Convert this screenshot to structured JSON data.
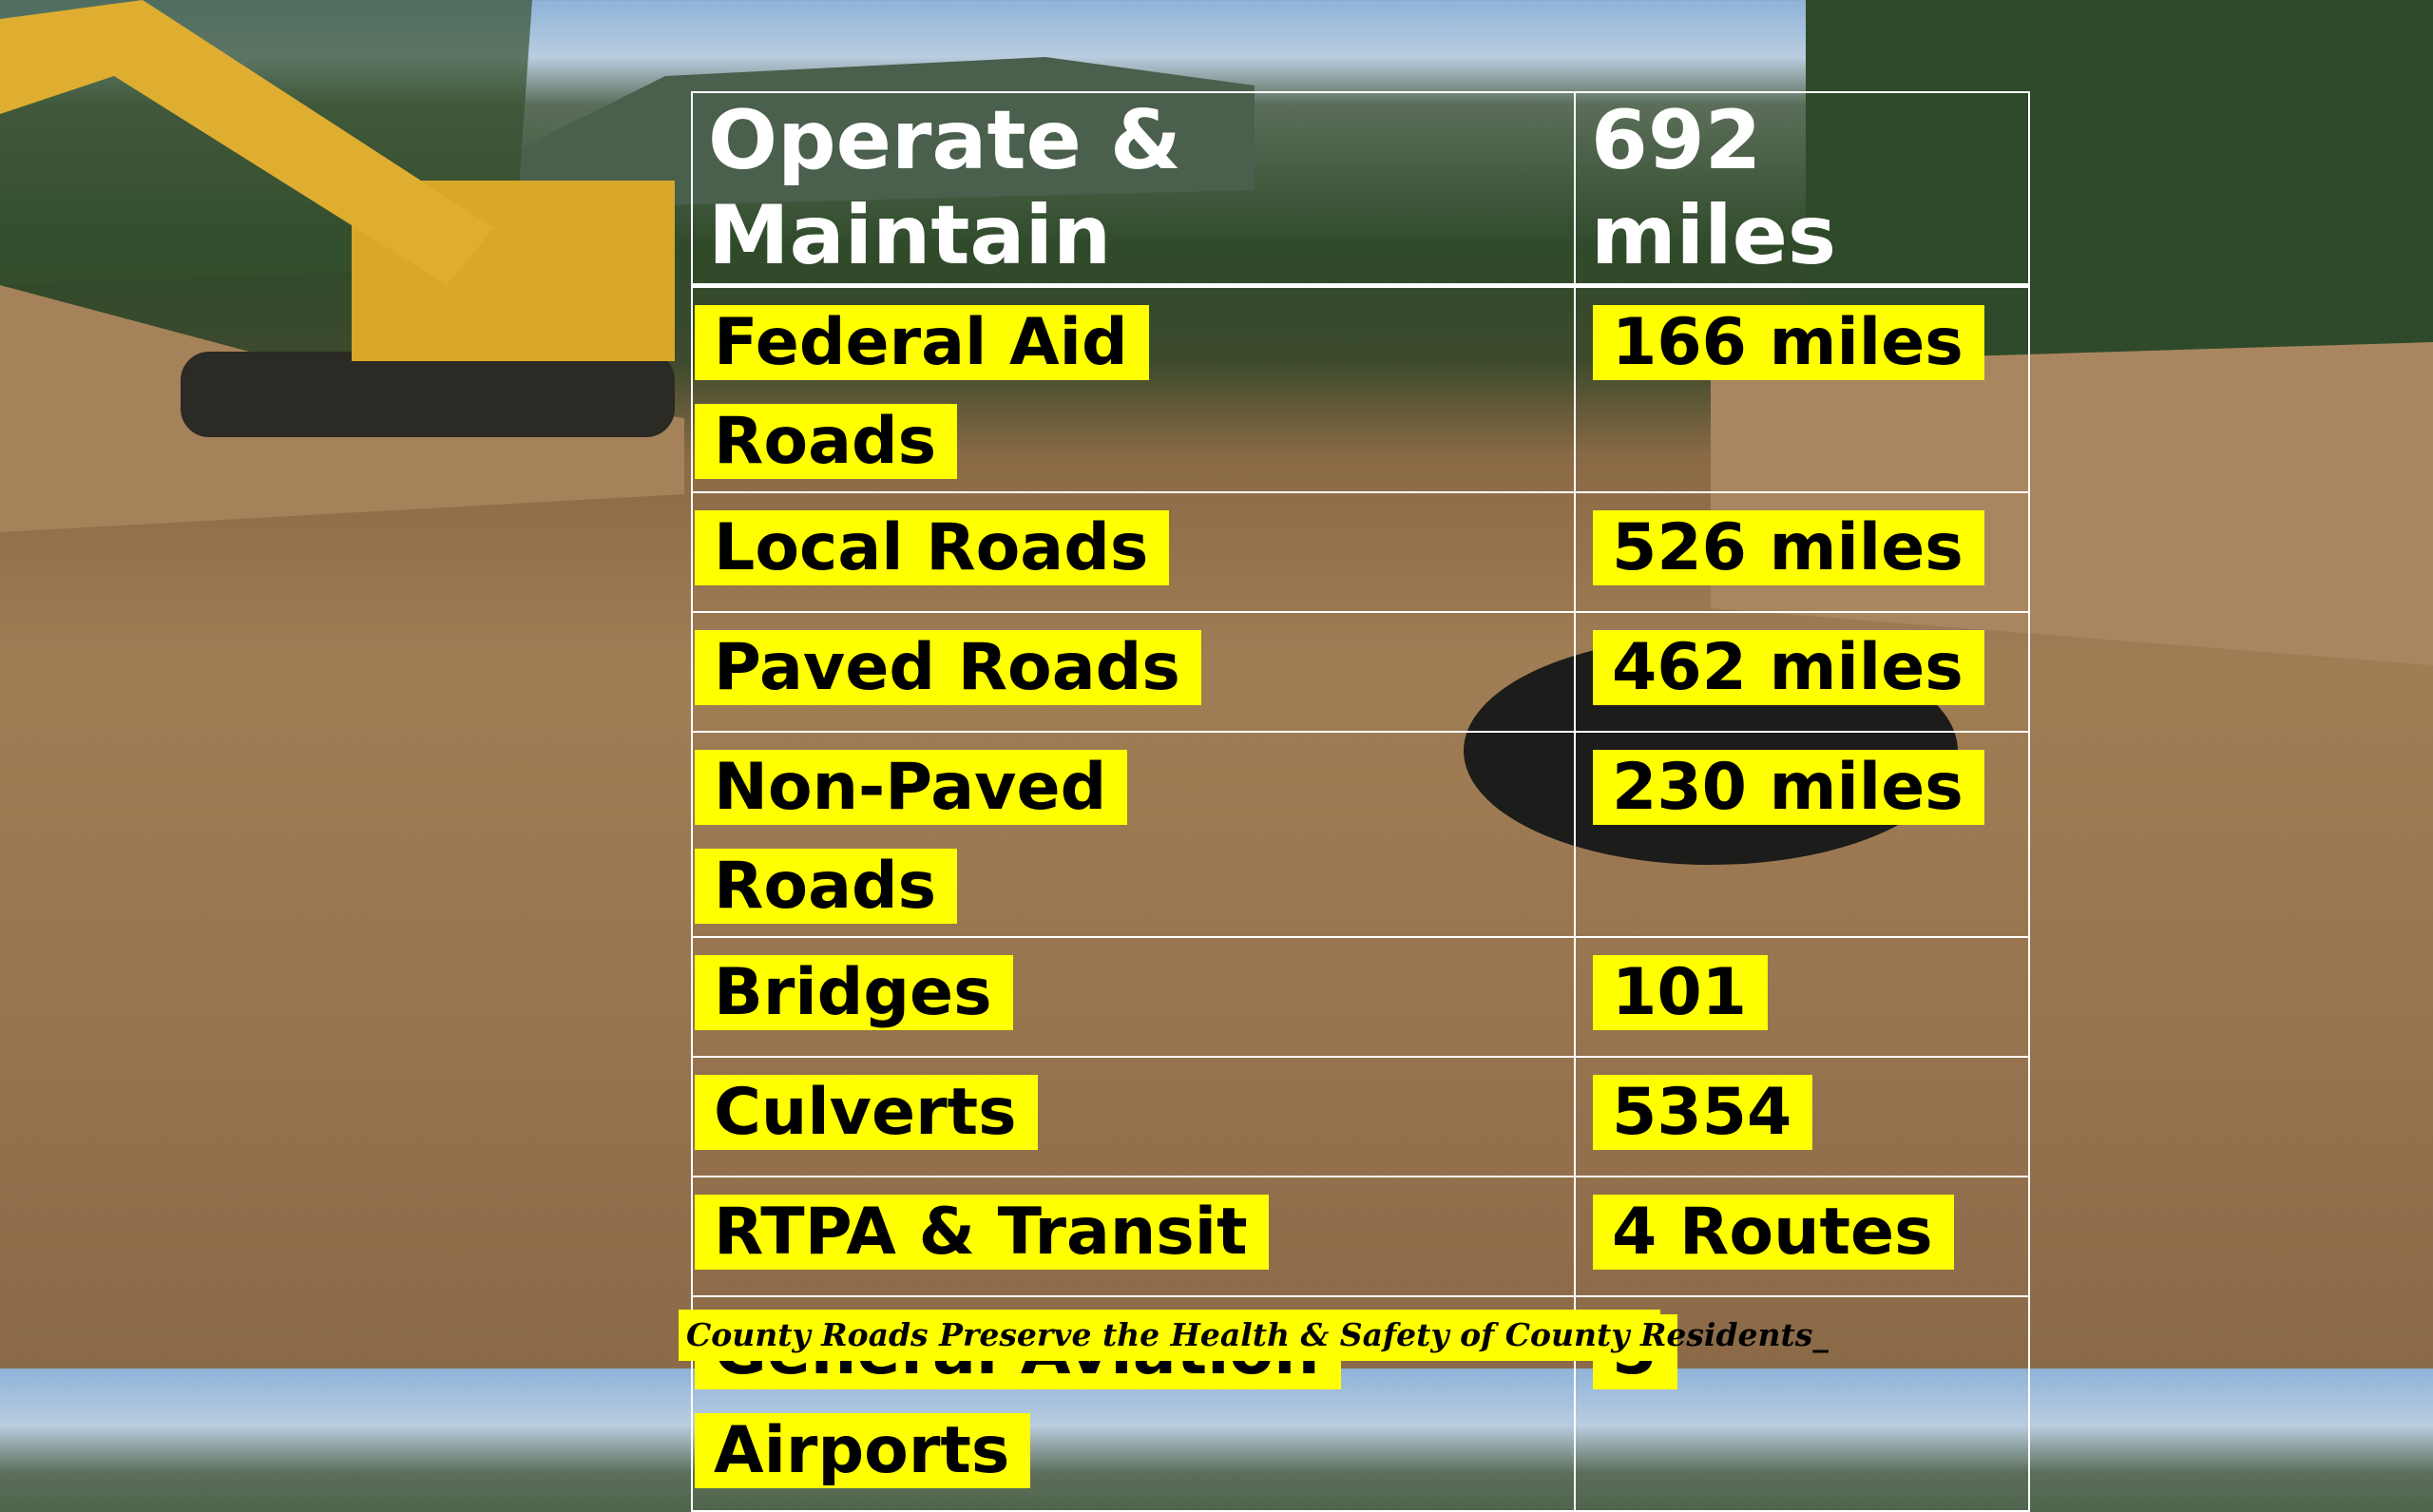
{
  "table": {
    "header": [
      "Operate & Maintain",
      "692 miles"
    ],
    "rows": [
      [
        "Federal Aid Roads",
        "166 miles"
      ],
      [
        "Local Roads",
        "526 miles"
      ],
      [
        "Paved Roads",
        "462 miles"
      ],
      [
        "Non-Paved Roads",
        "230 miles"
      ],
      [
        "Bridges",
        "101"
      ],
      [
        "Culverts",
        "5354"
      ],
      [
        "RTPA & Transit",
        "4 Routes"
      ],
      [
        "General Aviation Airports",
        "5"
      ]
    ]
  },
  "footer": "County Roads Preserve the Health & Safety of County Residents_"
}
